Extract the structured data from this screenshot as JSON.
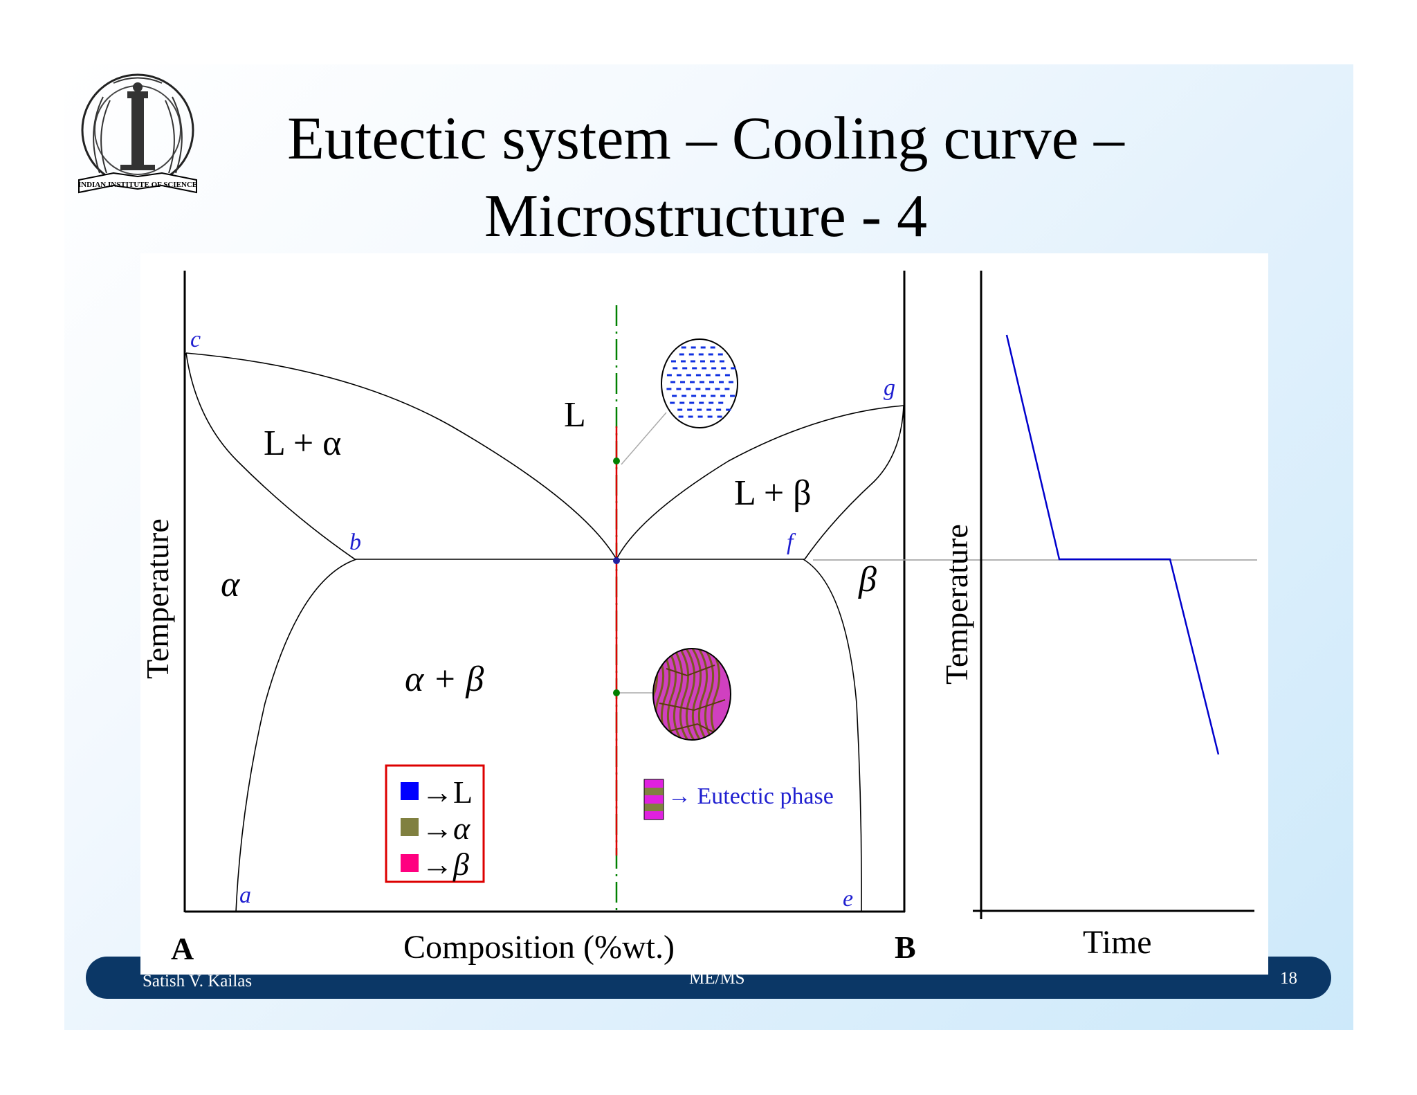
{
  "title_line1": "Eutectic system – Cooling curve –",
  "title_line2": "Microstructure - 4",
  "logo_text": "INDIAN INSTITUTE OF SCIENCE",
  "footer": {
    "author": "Satish V. Kailas",
    "course": "ME/MS",
    "page": "18"
  },
  "phase_diagram": {
    "y_axis_label": "Temperature",
    "x_axis_label": "Composition (%wt.)",
    "end_left": "A",
    "end_right": "B",
    "points": {
      "a": "a",
      "b": "b",
      "c": "c",
      "e": "e",
      "f": "f",
      "g": "g"
    },
    "regions": {
      "liquid": "L",
      "l_alpha": "L + α",
      "l_beta": "L + β",
      "alpha": "α",
      "beta": "β",
      "alpha_beta": "α + β"
    },
    "legend": [
      {
        "symbol": "→L",
        "color": "#0000ff"
      },
      {
        "symbol": "→α",
        "color": "#808040"
      },
      {
        "symbol": "→β",
        "color": "#ff0080"
      }
    ],
    "eutectic_label": "→ Eutectic phase"
  },
  "cooling_curve": {
    "y_axis_label": "Temperature",
    "x_axis_label": "Time",
    "line_color": "#0000cc"
  },
  "colors": {
    "footer_bar": "#0b3766",
    "composition_line": "#dd0000",
    "dashdot_line": "#008000",
    "label_blue": "#1f1fd0"
  }
}
